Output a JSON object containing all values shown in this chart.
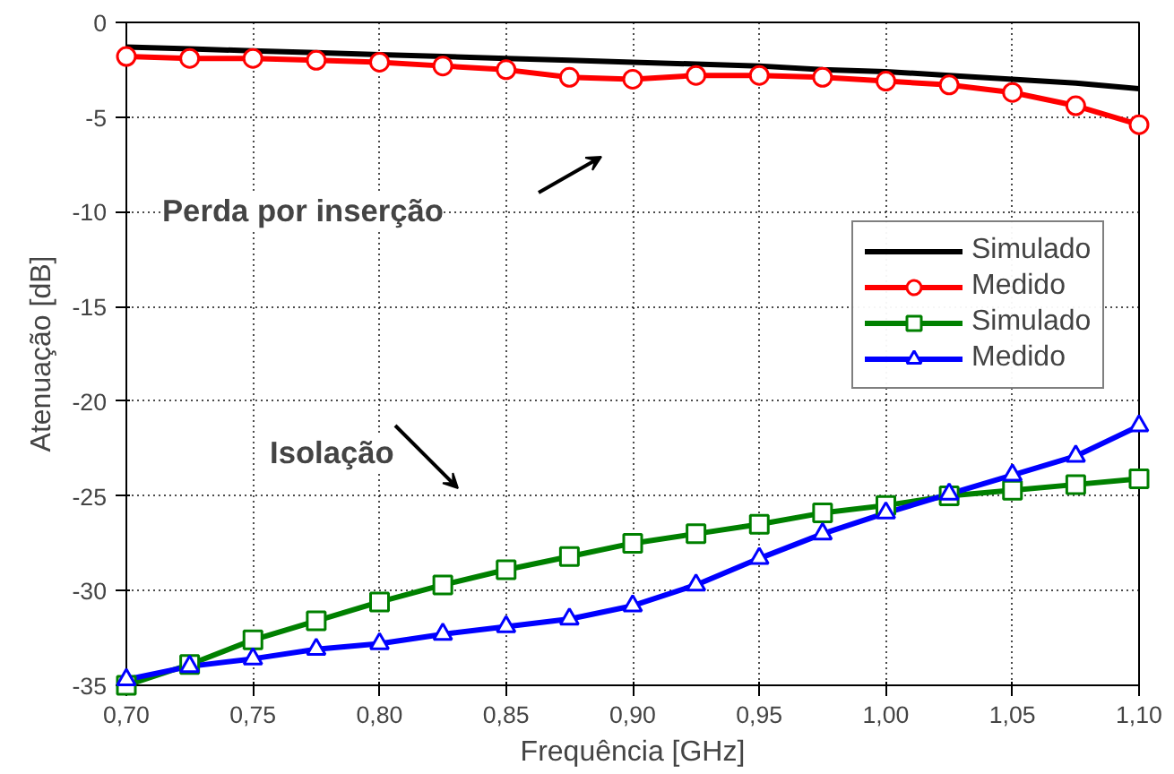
{
  "chart_data": {
    "type": "line",
    "xlabel": "Frequência [GHz]",
    "ylabel": "Atenuação [dB]",
    "x": [
      0.7,
      0.725,
      0.75,
      0.775,
      0.8,
      0.825,
      0.85,
      0.875,
      0.9,
      0.925,
      0.95,
      0.975,
      1.0,
      1.025,
      1.05,
      1.075,
      1.1
    ],
    "xlim": [
      0.7,
      1.1
    ],
    "ylim": [
      -35,
      0
    ],
    "xticks": [
      {
        "value": 0.7,
        "label": "0,70"
      },
      {
        "value": 0.75,
        "label": "0,75"
      },
      {
        "value": 0.8,
        "label": "0,80"
      },
      {
        "value": 0.85,
        "label": "0,85"
      },
      {
        "value": 0.9,
        "label": "0,90"
      },
      {
        "value": 0.95,
        "label": "0,95"
      },
      {
        "value": 1.0,
        "label": "1,00"
      },
      {
        "value": 1.05,
        "label": "1,05"
      },
      {
        "value": 1.1,
        "label": "1,10"
      }
    ],
    "yticks": [
      0,
      -5,
      -10,
      -15,
      -20,
      -25,
      -30,
      -35
    ],
    "grid": true,
    "legend": "top right",
    "series": [
      {
        "name": "Simulado",
        "color": "#000000",
        "marker": "none",
        "values": [
          -1.3,
          -1.4,
          -1.5,
          -1.6,
          -1.7,
          -1.8,
          -1.9,
          -2.0,
          -2.1,
          -2.2,
          -2.3,
          -2.5,
          -2.6,
          -2.8,
          -3.0,
          -3.2,
          -3.5
        ]
      },
      {
        "name": "Medido",
        "color": "#ff0000",
        "marker": "circle",
        "values": [
          -1.8,
          -1.9,
          -1.9,
          -2.0,
          -2.1,
          -2.3,
          -2.5,
          -2.9,
          -3.0,
          -2.8,
          -2.8,
          -2.9,
          -3.1,
          -3.3,
          -3.7,
          -4.4,
          -5.4
        ]
      },
      {
        "name": "Simulado",
        "color": "#008000",
        "marker": "square",
        "values": [
          -35.0,
          -33.9,
          -32.6,
          -31.6,
          -30.6,
          -29.7,
          -28.9,
          -28.2,
          -27.5,
          -27.0,
          -26.5,
          -25.9,
          -25.5,
          -25.0,
          -24.7,
          -24.4,
          -24.1
        ]
      },
      {
        "name": "Medido",
        "color": "#0000ff",
        "marker": "triangle",
        "values": [
          -34.7,
          -34.0,
          -33.6,
          -33.1,
          -32.8,
          -32.3,
          -31.9,
          -31.5,
          -30.8,
          -29.7,
          -28.3,
          -27.0,
          -25.9,
          -24.9,
          -23.9,
          -22.9,
          -21.3
        ]
      }
    ],
    "annotations": [
      "Perda por inserção",
      "Isolação"
    ]
  }
}
